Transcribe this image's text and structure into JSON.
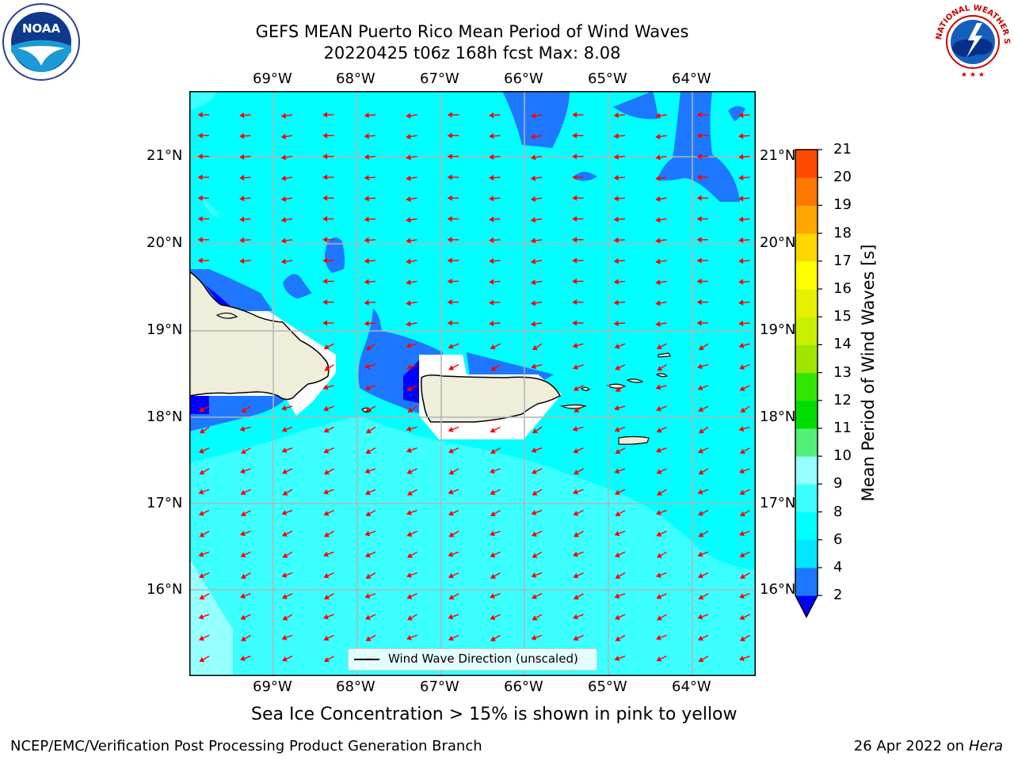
{
  "title": {
    "line1": "GEFS MEAN Puerto Rico Mean Period of Wind Waves",
    "line2": "20220425 t06z 168h fcst   Max: 8.08"
  },
  "logos": {
    "noaa": {
      "label": "NOAA",
      "icon": "noaa-logo-icon"
    },
    "nws": {
      "label": "NATIONAL WEATHER SERVICE",
      "icon": "nws-logo-icon"
    }
  },
  "map": {
    "lon_labels": [
      "69°W",
      "68°W",
      "67°W",
      "66°W",
      "65°W",
      "64°W"
    ],
    "lat_labels": [
      "21°N",
      "20°N",
      "19°N",
      "18°N",
      "17°N",
      "16°N"
    ],
    "legend": "Wind Wave Direction (unscaled)",
    "arrow_color": "#ff0000",
    "land_color": "#efeedb",
    "ocean_color": "#00ffff"
  },
  "colorbar": {
    "label": "Mean Period of Wind Waves [s]",
    "ticks": [
      "2",
      "4",
      "6",
      "8",
      "9",
      "10",
      "11",
      "12",
      "13",
      "14",
      "15",
      "16",
      "17",
      "18",
      "19",
      "20",
      "21"
    ],
    "colors": [
      "#0000ff",
      "#1e78ff",
      "#00e6ff",
      "#00ffff",
      "#3cffff",
      "#96ffff",
      "#50f079",
      "#00dc00",
      "#32e600",
      "#a0e600",
      "#c8f000",
      "#e6f000",
      "#ffff00",
      "#ffd700",
      "#ffa500",
      "#ff7800",
      "#ff4b00",
      "#ff0000"
    ]
  },
  "subtitle": "Sea Ice Concentration > 15% is shown in pink to yellow",
  "footer": {
    "left": "NCEP/EMC/Verification Post Processing Product Generation Branch",
    "date": "26 Apr 2022 on ",
    "machine": "Hera"
  }
}
